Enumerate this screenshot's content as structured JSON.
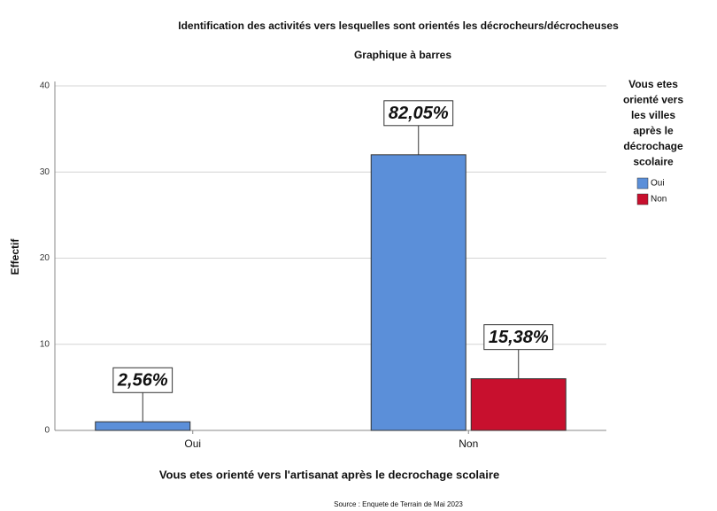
{
  "chart_data": {
    "type": "bar",
    "title": "Identification des activités vers lesquelles sont orientés les décrocheurs/décrocheuses",
    "subtitle": "Graphique à barres",
    "x_label": "Vous etes orienté vers l'artisanat après le decrochage scolaire",
    "y_label": "Effectif",
    "source": "Source : Enquete de Terrain de Mai 2023",
    "legend_title": [
      "Vous etes",
      "orienté vers",
      "les villes",
      "après le",
      "décrochage",
      "scolaire"
    ],
    "categories": [
      "Oui",
      "Non"
    ],
    "series": [
      {
        "name": "Oui",
        "color": "#5b8fd9",
        "values": [
          1,
          32
        ],
        "bar_labels": [
          "2,56%",
          "82,05%"
        ]
      },
      {
        "name": "Non",
        "color": "#c8102e",
        "values": [
          null,
          6
        ],
        "bar_labels": [
          null,
          "15,38%"
        ]
      }
    ],
    "ylim": [
      0,
      40
    ],
    "yticks": [
      0,
      10,
      20,
      30,
      40
    ],
    "grid": true,
    "legend": "right"
  }
}
